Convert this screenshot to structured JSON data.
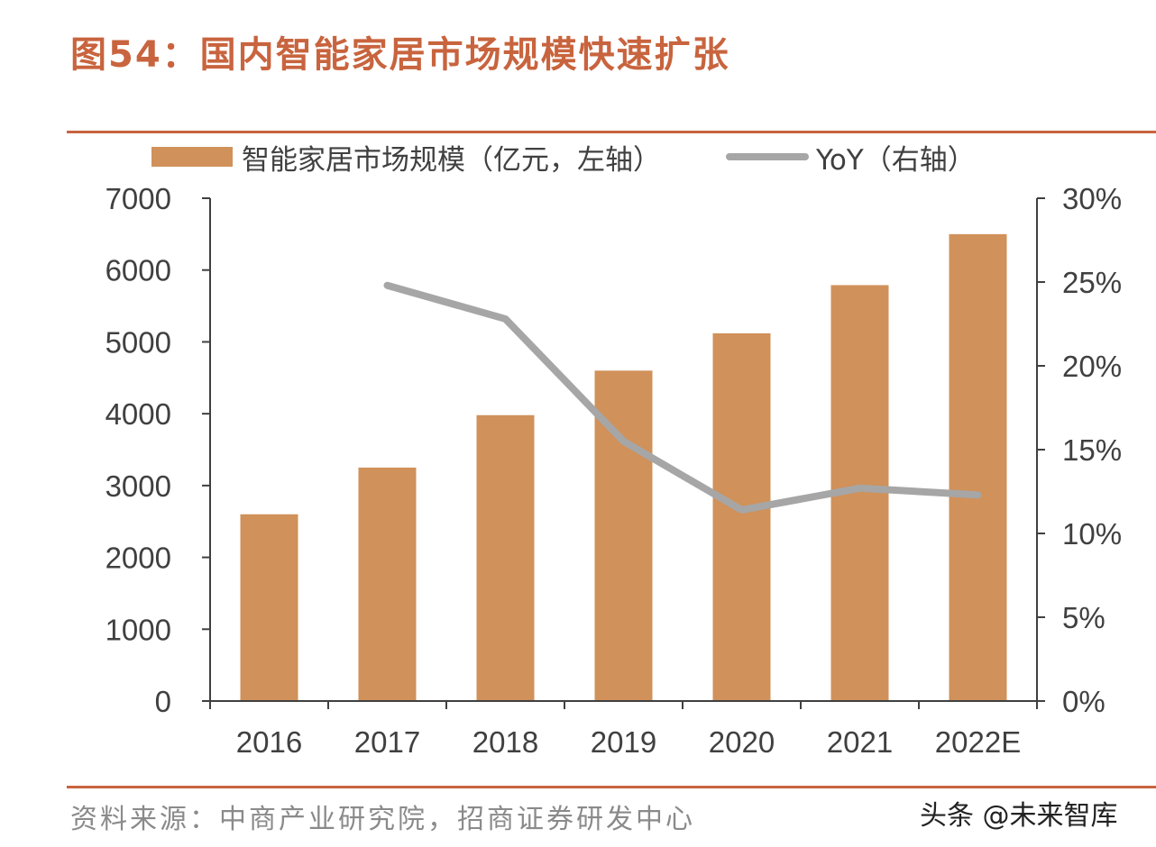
{
  "title": "图54：国内智能家居市场规模快速扩张",
  "source": "资料来源：中商产业研究院，招商证券研发中心",
  "watermark": "头条 @未来智库",
  "colors": {
    "title": "#c8643e",
    "bar": "#d0915a",
    "line": "#a6a6a6",
    "axis": "#404040"
  },
  "chart_data": {
    "type": "bar",
    "categories": [
      "2016",
      "2017",
      "2018",
      "2019",
      "2020",
      "2021",
      "2022E"
    ],
    "series": [
      {
        "name": "智能家居市场规模（亿元，左轴）",
        "type": "bar",
        "axis": "left",
        "values": [
          2600,
          3250,
          3980,
          4600,
          5120,
          5790,
          6500
        ]
      },
      {
        "name": "YoY（右轴）",
        "type": "line",
        "axis": "right",
        "values": [
          null,
          0.248,
          0.228,
          0.155,
          0.114,
          0.127,
          0.123
        ]
      }
    ],
    "left_axis": {
      "ylim": [
        0,
        7000
      ],
      "ticks": [
        "0",
        "1000",
        "2000",
        "3000",
        "4000",
        "5000",
        "6000",
        "7000"
      ]
    },
    "right_axis": {
      "ylim": [
        0,
        0.3
      ],
      "ticks": [
        "0%",
        "5%",
        "10%",
        "15%",
        "20%",
        "25%",
        "30%"
      ]
    },
    "legend": {
      "bar_label": "智能家居市场规模（亿元，左轴）",
      "line_label": "YoY（右轴）",
      "position": "top"
    }
  }
}
